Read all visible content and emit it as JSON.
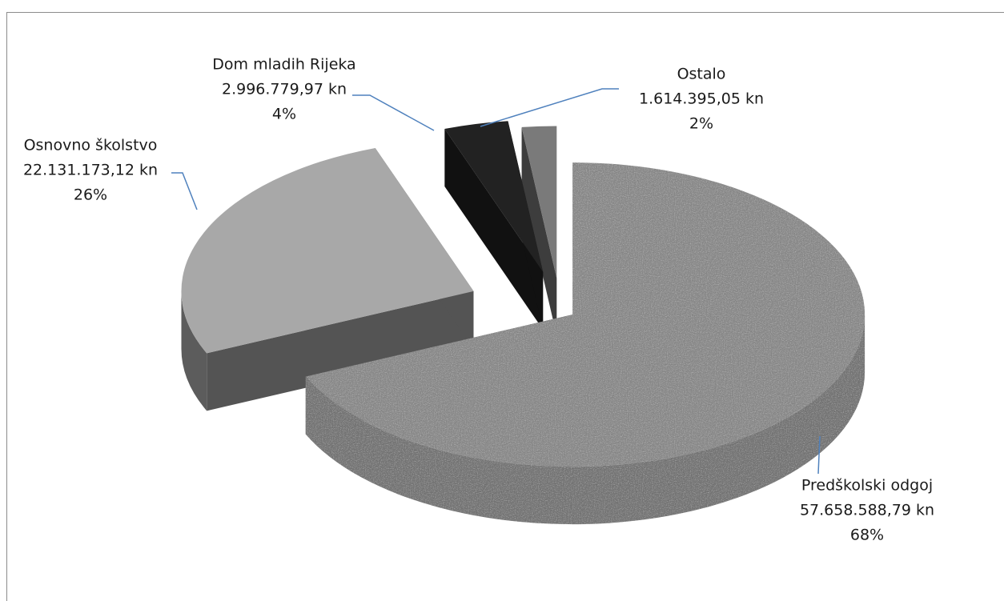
{
  "chart_data": {
    "type": "pie3d",
    "categories": [
      "Predškolski odgoj",
      "Osnovno školstvo",
      "Dom mladih Rijeka",
      "Ostalo"
    ],
    "values": [
      57658588.79,
      22131173.12,
      2996779.97,
      1614395.05
    ],
    "value_labels": [
      "57.658.588,79 kn",
      "22.131.173,12 kn",
      "2.996.779,97 kn",
      "1.614.395,05 kn"
    ],
    "percentages": [
      68,
      26,
      4,
      2
    ],
    "percentage_labels": [
      "68%",
      "26%",
      "4%",
      "2%"
    ],
    "colors": [
      "#8c8c8c",
      "#a8a8a8",
      "#222222",
      "#7a7a7a"
    ]
  }
}
